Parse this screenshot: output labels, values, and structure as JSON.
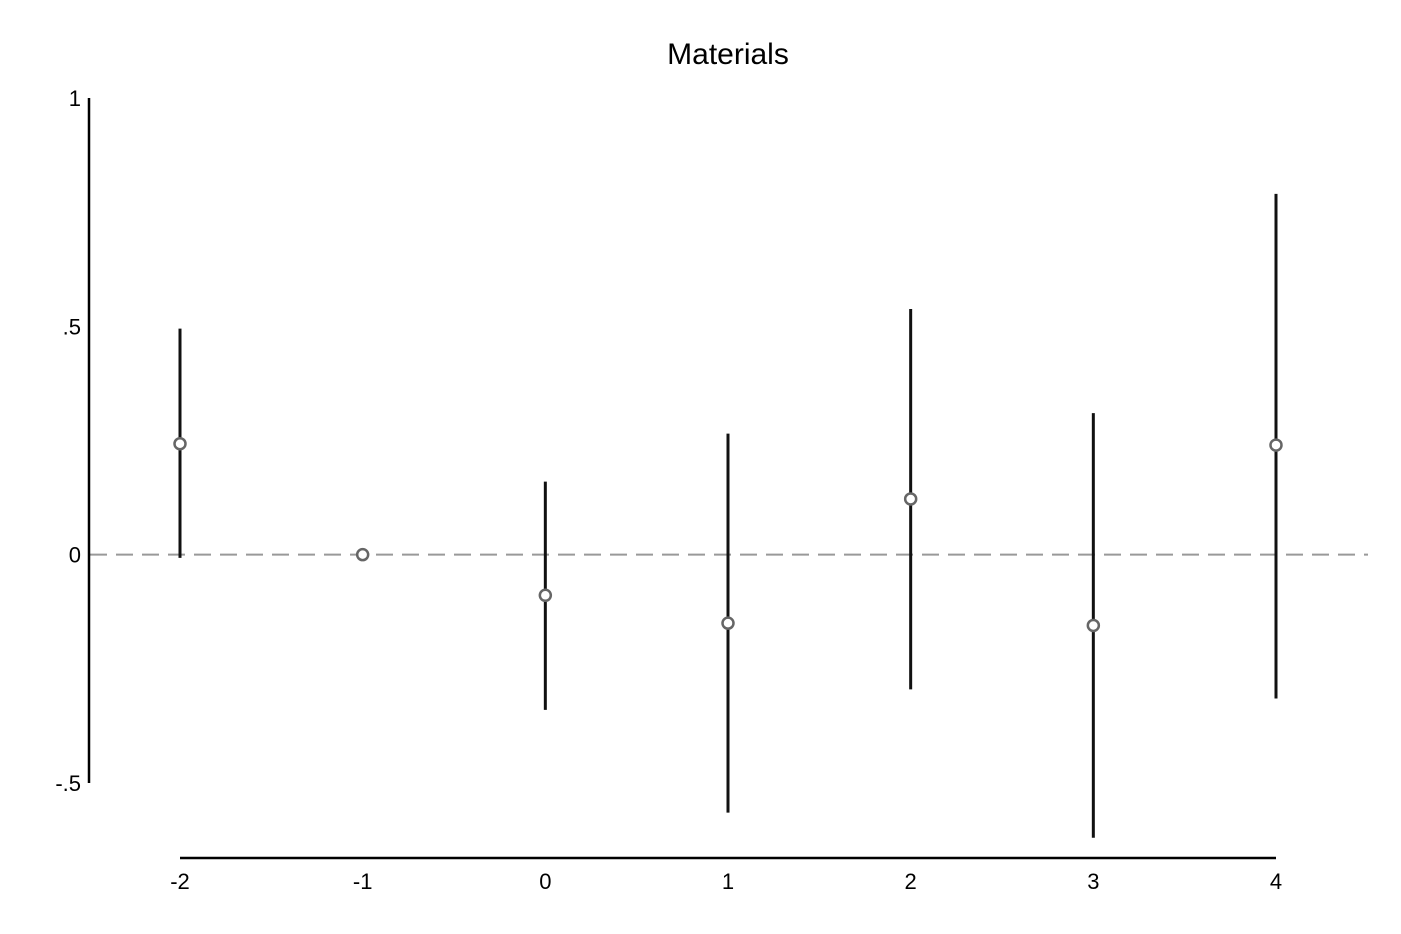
{
  "chart_data": {
    "type": "scatter",
    "title": "Materials",
    "xlabel": "",
    "ylabel": "",
    "x_ticks": [
      "-2",
      "-1",
      "0",
      "1",
      "2",
      "3",
      "4"
    ],
    "y_ticks": [
      "1",
      ".5",
      "0",
      "-.5"
    ],
    "xlim": [
      -2,
      4
    ],
    "ylim": [
      -0.5,
      1
    ],
    "reference_line": 0,
    "grid": false,
    "series": [
      {
        "points": [
          {
            "x": -2,
            "y": 0.243,
            "ci_low": -0.007,
            "ci_high": 0.495
          },
          {
            "x": -1,
            "y": 0.0
          },
          {
            "x": 0,
            "y": -0.089,
            "ci_low": -0.34,
            "ci_high": 0.16
          },
          {
            "x": 1,
            "y": -0.15,
            "ci_low": -0.565,
            "ci_high": 0.265
          },
          {
            "x": 2,
            "y": 0.122,
            "ci_low": -0.295,
            "ci_high": 0.538
          },
          {
            "x": 3,
            "y": -0.155,
            "ci_low": -0.62,
            "ci_high": 0.31
          },
          {
            "x": 4,
            "y": 0.24,
            "ci_low": -0.315,
            "ci_high": 0.79
          }
        ]
      }
    ],
    "colors": {
      "marker": "#666666",
      "ci": "#111111",
      "axis": "#000000",
      "reference_line": "#999999"
    }
  }
}
